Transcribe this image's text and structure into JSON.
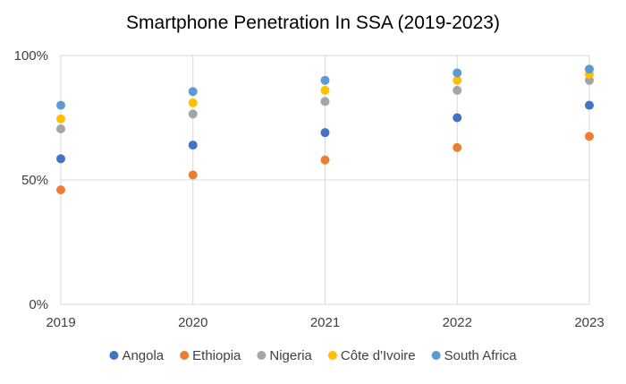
{
  "chart_data": {
    "type": "scatter",
    "title": "Smartphone Penetration In SSA (2019-2023)",
    "xlabel": "",
    "ylabel": "",
    "x": [
      2019,
      2020,
      2021,
      2022,
      2023
    ],
    "xlim": [
      2019,
      2023
    ],
    "ylim": [
      0,
      100
    ],
    "y_ticks": [
      {
        "value": 0,
        "label": "0%"
      },
      {
        "value": 50,
        "label": "50%"
      },
      {
        "value": 100,
        "label": "100%"
      }
    ],
    "x_ticks": [
      {
        "value": 2019,
        "label": "2019"
      },
      {
        "value": 2020,
        "label": "2020"
      },
      {
        "value": 2021,
        "label": "2021"
      },
      {
        "value": 2022,
        "label": "2022"
      },
      {
        "value": 2023,
        "label": "2023"
      }
    ],
    "grid": true,
    "legend_position": "bottom",
    "series": [
      {
        "name": "Angola",
        "color": "#4472c4",
        "values": [
          58.5,
          64,
          69,
          75,
          80
        ]
      },
      {
        "name": "Ethiopia",
        "color": "#ed7d31",
        "values": [
          46,
          52,
          58,
          63,
          67.5
        ]
      },
      {
        "name": "Nigeria",
        "color": "#a5a5a5",
        "values": [
          70.5,
          76.5,
          81.5,
          86,
          90
        ]
      },
      {
        "name": "Côte d'Ivoire",
        "color": "#ffc000",
        "values": [
          74.5,
          81,
          86,
          90,
          92.5
        ]
      },
      {
        "name": "South Africa",
        "color": "#5b9bd5",
        "values": [
          80,
          85.5,
          90,
          93,
          94.5
        ]
      }
    ]
  }
}
